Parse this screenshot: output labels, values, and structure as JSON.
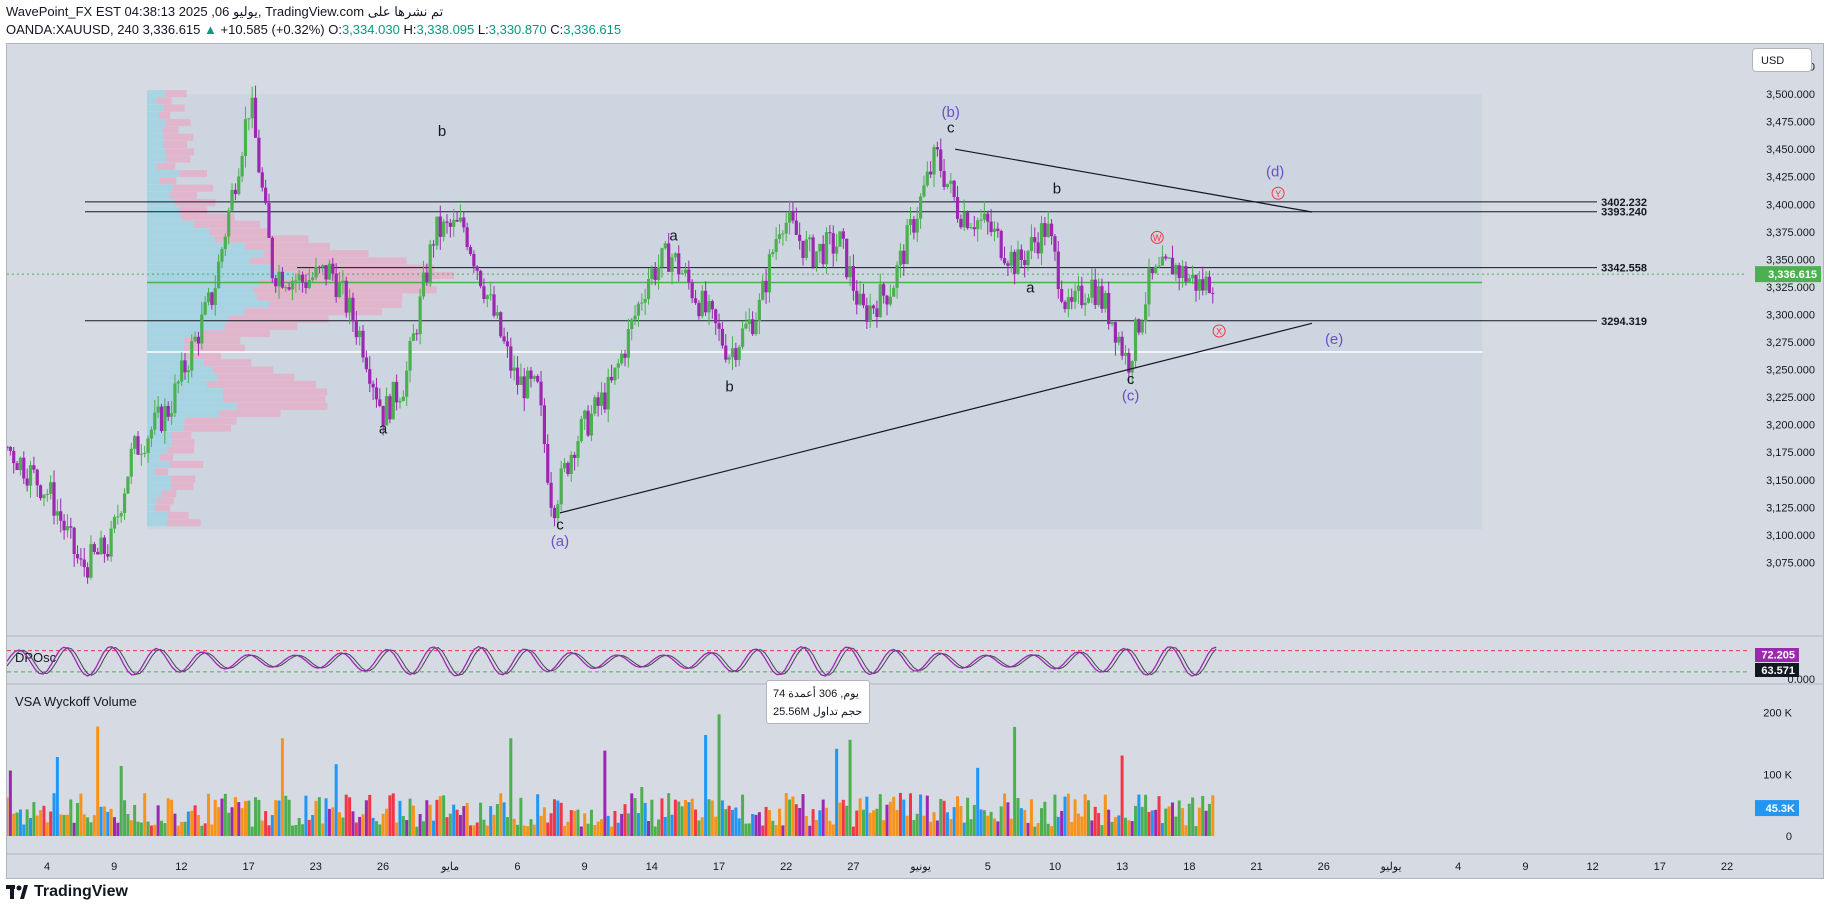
{
  "header": {
    "line1": "WavePoint_FX EST 04:38:13 2025 ,06 يوليو, TradingView.com تم نشرها على",
    "symbol": "OANDA:XAUUSD, 240",
    "last": "3,336.615",
    "change": "+10.585 (+0.32%)",
    "o_label": "O:",
    "o": "3,334.030",
    "h_label": "H:",
    "h": "3,338.095",
    "l_label": "L:",
    "l": "3,330.870",
    "c_label": "C:",
    "c": "3,336.615"
  },
  "currency_button": "USD",
  "footer": {
    "brand": "TradingView"
  },
  "tooltip": {
    "line1": "74 يوم, 306 أعمدة",
    "line2": "25.56M حجم تداول"
  },
  "colors": {
    "up": "#4caf50",
    "down": "#9c27b0",
    "bg": "#d6dbe3",
    "wave": "#6a4fc9",
    "level": "#131722",
    "vpoc": "#4caf50"
  },
  "chart_data": [
    {
      "type": "candlestick",
      "title": "OANDA:XAUUSD, 240",
      "ylim": [
        3050,
        3540
      ],
      "y_ticks": [
        "3,525.000",
        "3,500.000",
        "3,475.000",
        "3,450.000",
        "3,425.000",
        "3,400.000",
        "3,375.000",
        "3,350.000",
        "3,325.000",
        "3,300.000",
        "3,275.000",
        "3,250.000",
        "3,225.000",
        "3,200.000",
        "3,175.000",
        "3,150.000",
        "3,125.000",
        "3,100.000",
        "3,075.000"
      ],
      "x_ticks": [
        "4",
        "9",
        "12",
        "17",
        "23",
        "26",
        "مايو",
        "6",
        "9",
        "14",
        "17",
        "22",
        "27",
        "يونيو",
        "5",
        "10",
        "13",
        "18",
        "21",
        "26",
        "يوليو",
        "4",
        "9",
        "12",
        "17",
        "22"
      ],
      "last_price": "3,336.615",
      "levels": [
        {
          "label": "3402.232",
          "value": 3402.232
        },
        {
          "label": "3393.240",
          "value": 3393.24
        },
        {
          "label": "3342.558",
          "value": 3342.558
        },
        {
          "label": "3294.319",
          "value": 3294.319
        }
      ],
      "close_path": [
        {
          "x": 0.0,
          "y": 3180
        },
        {
          "x": 0.03,
          "y": 3135
        },
        {
          "x": 0.05,
          "y": 3070
        },
        {
          "x": 0.07,
          "y": 3090
        },
        {
          "x": 0.085,
          "y": 3175
        },
        {
          "x": 0.11,
          "y": 3215
        },
        {
          "x": 0.14,
          "y": 3320
        },
        {
          "x": 0.165,
          "y": 3495
        },
        {
          "x": 0.18,
          "y": 3340
        },
        {
          "x": 0.2,
          "y": 3330
        },
        {
          "x": 0.22,
          "y": 3340
        },
        {
          "x": 0.24,
          "y": 3280
        },
        {
          "x": 0.255,
          "y": 3210
        },
        {
          "x": 0.27,
          "y": 3240
        },
        {
          "x": 0.29,
          "y": 3375
        },
        {
          "x": 0.31,
          "y": 3380
        },
        {
          "x": 0.33,
          "y": 3300
        },
        {
          "x": 0.345,
          "y": 3240
        },
        {
          "x": 0.36,
          "y": 3230
        },
        {
          "x": 0.37,
          "y": 3125
        },
        {
          "x": 0.385,
          "y": 3185
        },
        {
          "x": 0.41,
          "y": 3235
        },
        {
          "x": 0.435,
          "y": 3335
        },
        {
          "x": 0.45,
          "y": 3355
        },
        {
          "x": 0.475,
          "y": 3300
        },
        {
          "x": 0.49,
          "y": 3265
        },
        {
          "x": 0.51,
          "y": 3305
        },
        {
          "x": 0.525,
          "y": 3390
        },
        {
          "x": 0.545,
          "y": 3355
        },
        {
          "x": 0.565,
          "y": 3365
        },
        {
          "x": 0.58,
          "y": 3300
        },
        {
          "x": 0.6,
          "y": 3325
        },
        {
          "x": 0.615,
          "y": 3385
        },
        {
          "x": 0.63,
          "y": 3445
        },
        {
          "x": 0.645,
          "y": 3395
        },
        {
          "x": 0.665,
          "y": 3380
        },
        {
          "x": 0.685,
          "y": 3345
        },
        {
          "x": 0.705,
          "y": 3380
        },
        {
          "x": 0.72,
          "y": 3300
        },
        {
          "x": 0.735,
          "y": 3330
        },
        {
          "x": 0.75,
          "y": 3295
        },
        {
          "x": 0.76,
          "y": 3255
        },
        {
          "x": 0.775,
          "y": 3330
        },
        {
          "x": 0.79,
          "y": 3345
        },
        {
          "x": 0.81,
          "y": 3325
        },
        {
          "x": 0.82,
          "y": 3336
        }
      ],
      "wave_labels": [
        {
          "text": "a",
          "x": 0.255,
          "y": 3192
        },
        {
          "text": "b",
          "x": 0.295,
          "y": 3462
        },
        {
          "text": "c",
          "x": 0.375,
          "y": 3105
        },
        {
          "text": "(a)",
          "x": 0.375,
          "y": 3090
        },
        {
          "text": "a",
          "x": 0.452,
          "y": 3367
        },
        {
          "text": "b",
          "x": 0.49,
          "y": 3230
        },
        {
          "text": "(b)",
          "x": 0.64,
          "y": 3479
        },
        {
          "text": "c",
          "x": 0.64,
          "y": 3465
        },
        {
          "text": "b",
          "x": 0.712,
          "y": 3410
        },
        {
          "text": "a",
          "x": 0.694,
          "y": 3320
        },
        {
          "text": "c",
          "x": 0.762,
          "y": 3237
        },
        {
          "text": "(c)",
          "x": 0.762,
          "y": 3222
        },
        {
          "text": "(d)",
          "x": 0.86,
          "y": 3425
        },
        {
          "text": "(e)",
          "x": 0.9,
          "y": 3273
        }
      ],
      "circle_labels": [
        {
          "text": "W",
          "x": 0.78,
          "y": 3370
        },
        {
          "text": "Y",
          "x": 0.862,
          "y": 3410
        },
        {
          "text": "X",
          "x": 0.822,
          "y": 3285
        }
      ],
      "trendlines": [
        {
          "x1": 0.375,
          "y1": 3120,
          "x2": 0.885,
          "y2": 3292
        },
        {
          "x1": 0.643,
          "y1": 3450,
          "x2": 0.885,
          "y2": 3393
        }
      ]
    },
    {
      "type": "line",
      "title": "DPOsc",
      "ylim": [
        -20,
        110
      ],
      "y_ticks": [
        "0.000"
      ],
      "series": [
        {
          "name": "DPOsc",
          "last": "72.205",
          "color": "#9c27b0"
        },
        {
          "name": "signal",
          "last": "63.571",
          "color": "#131722"
        }
      ]
    },
    {
      "type": "bar",
      "title": "VSA Wyckoff Volume",
      "ylim": [
        0,
        240000
      ],
      "y_ticks": [
        "200 K",
        "100 K",
        "0"
      ],
      "last_value": "45.3K"
    }
  ]
}
